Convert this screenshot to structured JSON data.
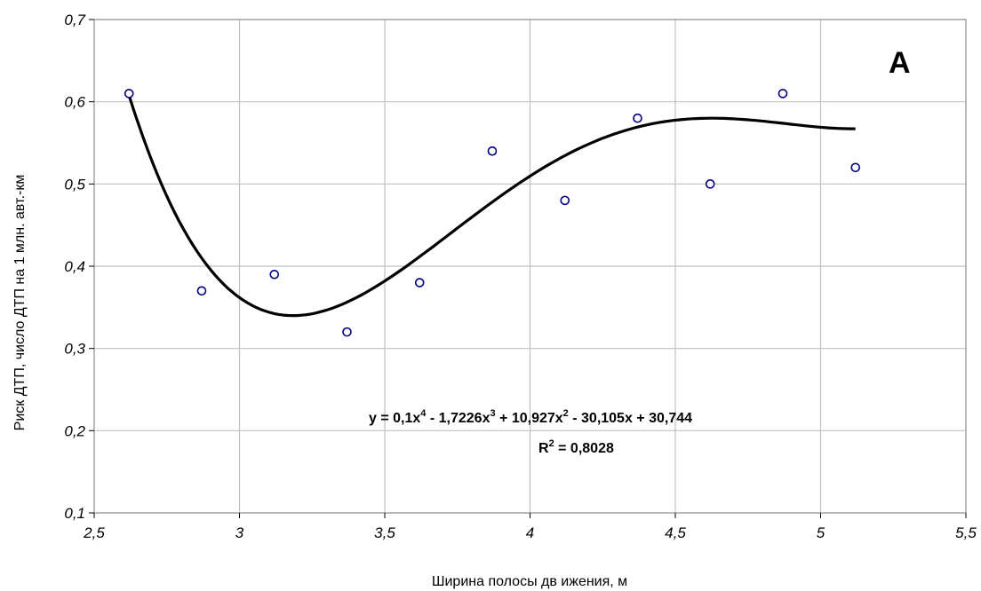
{
  "chart_data": {
    "type": "scatter",
    "panel_label": "А",
    "xlabel": "Ширина полосы дв ижения, м",
    "ylabel": "Риск  ДТП, число ДТП на 1 млн. авт.-км",
    "xlim": [
      2.5,
      5.5
    ],
    "ylim": [
      0.1,
      0.7
    ],
    "x_ticks": [
      "2,5",
      "3",
      "3,5",
      "4",
      "4,5",
      "5",
      "5,5"
    ],
    "y_ticks": [
      "0,1",
      "0,2",
      "0,3",
      "0,4",
      "0,5",
      "0,6",
      "0,7"
    ],
    "grid": true,
    "points": [
      {
        "x": 2.62,
        "y": 0.61
      },
      {
        "x": 2.87,
        "y": 0.37
      },
      {
        "x": 3.12,
        "y": 0.39
      },
      {
        "x": 3.37,
        "y": 0.32
      },
      {
        "x": 3.62,
        "y": 0.38
      },
      {
        "x": 3.87,
        "y": 0.54
      },
      {
        "x": 4.12,
        "y": 0.48
      },
      {
        "x": 4.37,
        "y": 0.58
      },
      {
        "x": 4.62,
        "y": 0.5
      },
      {
        "x": 4.87,
        "y": 0.61
      },
      {
        "x": 5.12,
        "y": 0.52
      }
    ],
    "trendline": {
      "type": "polynomial",
      "coefficients": [
        0.1,
        -1.7226,
        10.927,
        -30.105,
        30.744
      ],
      "x_range": [
        2.62,
        5.12
      ],
      "equation": {
        "prefix": "y = 0,1x",
        "t1": " - 1,7226x",
        "t2": " + 10,927x",
        "t3": " - 30,105x + 30,744",
        "e4": "4",
        "e3": "3",
        "e2": "2"
      },
      "r2": {
        "prefix": "R",
        "sup": "2",
        "suffix": " = 0,8028"
      }
    },
    "colors": {
      "points": "#000080",
      "line": "#000000",
      "grid": "#c0c0c0"
    }
  }
}
